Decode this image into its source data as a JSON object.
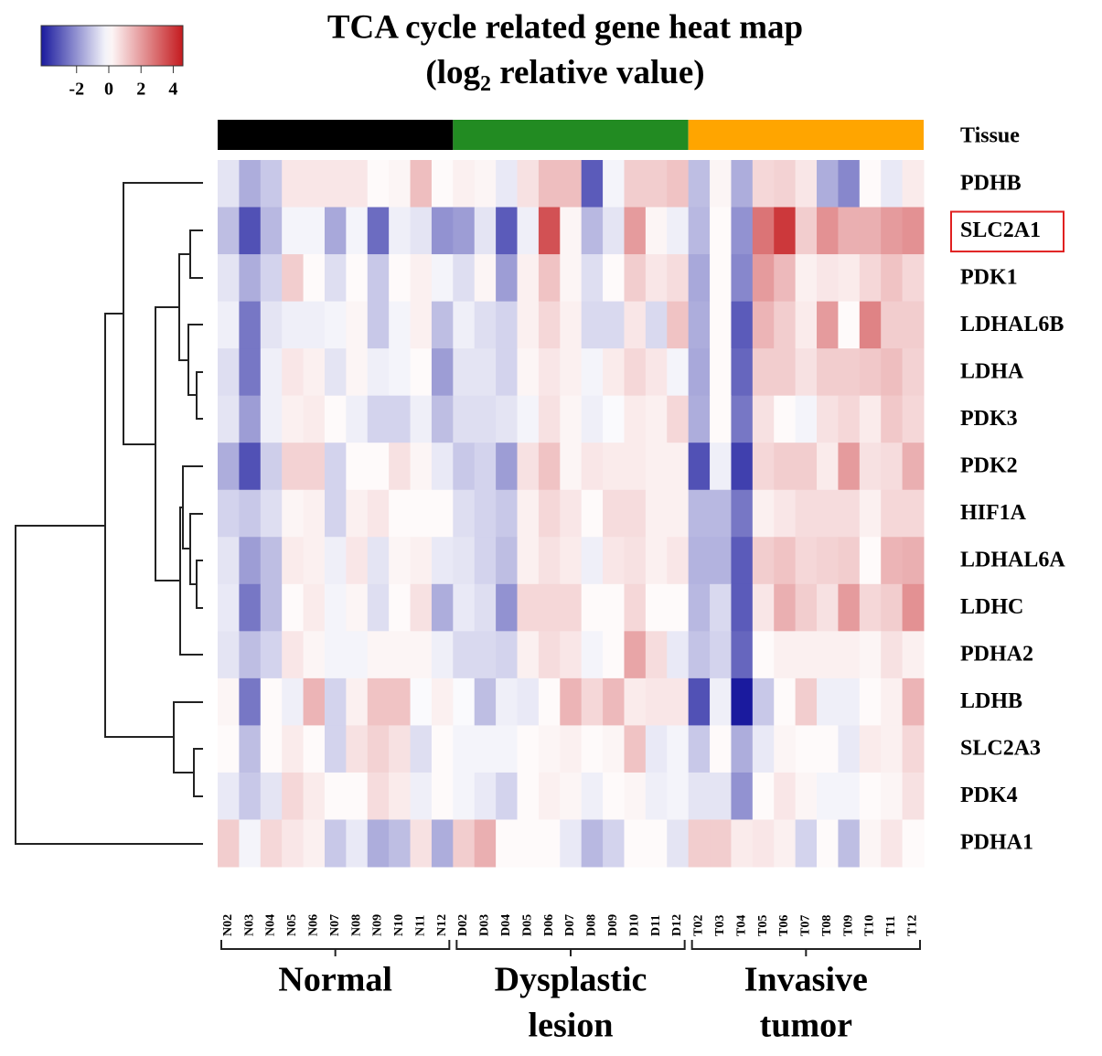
{
  "chart_data": {
    "type": "heatmap",
    "title": "TCA cycle related gene heat map",
    "subtitle_parts": [
      "(log",
      "2",
      " relative value)"
    ],
    "annotation_label": "Tissue",
    "colors": {
      "low": "#1a1a9e",
      "mid": "#ffffff",
      "high": "#c41a1e"
    },
    "colorbar_lim": [
      -4.2,
      4.6
    ],
    "colorbar_ticks": [
      -2,
      0,
      2,
      4
    ],
    "highlight": "SLC2A1",
    "groups": [
      {
        "label_lines": [
          "Normal"
        ],
        "color": "#000000",
        "columns": [
          "N02",
          "N03",
          "N04",
          "N05",
          "N06",
          "N07",
          "N08",
          "N09",
          "N10",
          "N11",
          "N12"
        ]
      },
      {
        "label_lines": [
          "Dysplastic",
          "lesion"
        ],
        "color": "#228b22",
        "columns": [
          "D02",
          "D03",
          "D04",
          "D05",
          "D06",
          "D07",
          "D08",
          "D09",
          "D10",
          "D11",
          "D12"
        ]
      },
      {
        "label_lines": [
          "Invasive",
          "tumor"
        ],
        "color": "#ffa500",
        "columns": [
          "T02",
          "T03",
          "T04",
          "T05",
          "T06",
          "T07",
          "T08",
          "T09",
          "T10",
          "T11",
          "T12"
        ]
      }
    ],
    "series": [
      {
        "name": "PDHB",
        "values": [
          -0.5,
          -1.5,
          -1,
          0.5,
          0.5,
          0.5,
          0.5,
          0.1,
          0.2,
          1.3,
          0.1,
          0.3,
          0.2,
          -0.4,
          0.6,
          1.3,
          1.3,
          -3,
          -0.2,
          1,
          1,
          1.2,
          -1.2,
          0.2,
          -1.5,
          0.8,
          0.9,
          0.5,
          -1.5,
          -2.2,
          0.1,
          -0.4,
          0.4
        ]
      },
      {
        "name": "SLC2A1",
        "values": [
          -1.2,
          -3.2,
          -1.3,
          -0.2,
          -0.2,
          -1.6,
          -0.2,
          -2.7,
          -0.3,
          -0.5,
          -2,
          -1.8,
          -0.5,
          -3,
          -0.3,
          3.5,
          0.2,
          -1.3,
          -0.5,
          2,
          0.2,
          -0.3,
          -1.3,
          0.1,
          -2,
          2.8,
          4,
          1,
          2.2,
          1.6,
          1.6,
          2,
          2.2
        ]
      },
      {
        "name": "PDK1",
        "values": [
          -0.5,
          -1.5,
          -0.8,
          1,
          0.1,
          -0.6,
          0.1,
          -1,
          0.1,
          0.3,
          -0.2,
          -0.6,
          0.2,
          -1.8,
          0.3,
          1.2,
          0.2,
          -0.6,
          0.1,
          1,
          0.5,
          0.7,
          -1.6,
          0.1,
          -2.2,
          2,
          1.4,
          0.3,
          0.5,
          0.4,
          0.8,
          1.2,
          0.8
        ]
      },
      {
        "name": "LDHAL6B",
        "values": [
          -0.3,
          -2.5,
          -0.5,
          -0.3,
          -0.3,
          -0.2,
          0.2,
          -1,
          -0.2,
          0.3,
          -1.2,
          -0.3,
          -0.6,
          -0.8,
          0.3,
          0.8,
          0.3,
          -0.7,
          -0.7,
          0.5,
          -0.7,
          1.2,
          -1.5,
          0.1,
          -3,
          1.5,
          1,
          0.4,
          2,
          0.1,
          2.5,
          1,
          1
        ]
      },
      {
        "name": "LDHA",
        "values": [
          -0.6,
          -2.5,
          -0.3,
          0.5,
          0.3,
          -0.5,
          0.2,
          -0.3,
          -0.2,
          0.1,
          -1.8,
          -0.5,
          -0.5,
          -0.8,
          0.2,
          0.5,
          0.3,
          -0.2,
          0.4,
          0.8,
          0.5,
          -0.2,
          -1.6,
          0.1,
          -2.8,
          1,
          1,
          0.6,
          1,
          1,
          1.1,
          1.3,
          0.9
        ]
      },
      {
        "name": "PDK3",
        "values": [
          -0.5,
          -1.8,
          -0.3,
          0.3,
          0.4,
          0.1,
          -0.3,
          -0.8,
          -0.8,
          -0.3,
          -1.2,
          -0.6,
          -0.6,
          -0.5,
          -0.2,
          0.6,
          0.2,
          -0.3,
          -0.1,
          0.4,
          0.3,
          0.8,
          -1.5,
          0.1,
          -2.5,
          0.6,
          0.1,
          -0.2,
          0.6,
          0.8,
          0.4,
          1.1,
          0.8
        ]
      },
      {
        "name": "PDK2",
        "values": [
          -1.5,
          -3.2,
          -0.9,
          0.9,
          0.9,
          -0.8,
          0.1,
          0.1,
          0.6,
          0.2,
          -0.4,
          -1,
          -0.8,
          -1.8,
          0.6,
          1.2,
          0.2,
          0.5,
          0.4,
          0.4,
          0.3,
          0.3,
          -3.2,
          -0.3,
          -3.5,
          0.8,
          1,
          1,
          0.4,
          2,
          0.6,
          0.7,
          1.6
        ]
      },
      {
        "name": "HIF1A",
        "values": [
          -0.8,
          -1,
          -0.6,
          0.2,
          0.3,
          -0.8,
          0.3,
          0.5,
          0.1,
          0.1,
          0.1,
          -0.6,
          -0.8,
          -1,
          0.3,
          0.8,
          0.5,
          0.1,
          0.7,
          0.7,
          0.3,
          0.3,
          -1.3,
          -1.3,
          -2.5,
          0.3,
          0.5,
          0.7,
          0.7,
          0.7,
          0.3,
          0.8,
          0.8
        ]
      },
      {
        "name": "LDHAL6A",
        "values": [
          -0.5,
          -1.8,
          -1.2,
          0.4,
          0.3,
          -0.3,
          0.5,
          -0.5,
          0.2,
          0.3,
          -0.4,
          -0.5,
          -0.8,
          -1.2,
          0.3,
          0.6,
          0.4,
          -0.3,
          0.5,
          0.6,
          0.3,
          0.5,
          -1.4,
          -1.4,
          -3,
          1,
          1.2,
          0.8,
          0.9,
          1,
          0.1,
          1.5,
          1.6
        ]
      },
      {
        "name": "LDHC",
        "values": [
          -0.4,
          -2.5,
          -1.2,
          0.1,
          0.4,
          -0.2,
          0.2,
          -0.6,
          0.1,
          0.6,
          -1.5,
          -0.4,
          -0.6,
          -2,
          0.8,
          0.8,
          0.8,
          0.1,
          0.1,
          0.8,
          0.1,
          0.1,
          -1.3,
          -0.7,
          -3,
          0.5,
          1.6,
          1,
          0.6,
          2,
          0.8,
          1,
          2.2
        ]
      },
      {
        "name": "PDHA2",
        "values": [
          -0.5,
          -1.2,
          -0.8,
          0.5,
          0.2,
          -0.2,
          -0.2,
          0.2,
          0.2,
          0.2,
          -0.3,
          -0.7,
          -0.7,
          -0.8,
          0.3,
          0.7,
          0.5,
          -0.2,
          0.1,
          1.8,
          0.7,
          -0.4,
          -1.1,
          -0.8,
          -2.8,
          0.1,
          0.3,
          0.3,
          0.3,
          0.3,
          0.2,
          0.6,
          0.3
        ]
      },
      {
        "name": "LDHB",
        "values": [
          0.2,
          -2.5,
          0.1,
          -0.3,
          1.5,
          -0.8,
          0.3,
          1.2,
          1.2,
          -0.1,
          0.3,
          -0.1,
          -1.2,
          -0.3,
          -0.4,
          0.1,
          1.5,
          0.8,
          1.4,
          0.4,
          0.5,
          0.5,
          -3.2,
          -0.3,
          -4.2,
          -1,
          0.1,
          1,
          -0.3,
          -0.3,
          0.1,
          0.3,
          1.5
        ]
      },
      {
        "name": "SLC2A3",
        "values": [
          0.1,
          -1.2,
          0.1,
          0.4,
          0.1,
          -0.8,
          0.6,
          0.9,
          0.6,
          -0.6,
          0.1,
          -0.2,
          -0.2,
          -0.2,
          0.1,
          0.2,
          0.3,
          0.1,
          0.2,
          1.2,
          -0.4,
          -0.2,
          -1,
          0.1,
          -1.5,
          -0.4,
          0.2,
          0.1,
          0.1,
          -0.4,
          0.4,
          0.3,
          0.8
        ]
      },
      {
        "name": "PDK4",
        "values": [
          -0.4,
          -1,
          -0.5,
          0.8,
          0.4,
          0.1,
          0.1,
          0.7,
          0.4,
          -0.3,
          0.1,
          -0.2,
          -0.4,
          -0.8,
          0.1,
          0.3,
          0.2,
          -0.3,
          0.1,
          0.2,
          -0.3,
          -0.2,
          -0.5,
          -0.5,
          -2,
          0.1,
          0.5,
          0.2,
          -0.2,
          -0.2,
          0.1,
          0.2,
          0.6
        ]
      },
      {
        "name": "PDHA1",
        "values": [
          1,
          -0.2,
          0.8,
          0.5,
          0.3,
          -1,
          -0.4,
          -1.5,
          -1.2,
          0.6,
          -1.5,
          1,
          1.6,
          0.1,
          0.1,
          0.1,
          -0.4,
          -1.3,
          -0.8,
          0.1,
          0.1,
          -0.5,
          1,
          1,
          0.4,
          0.5,
          0.3,
          -0.8,
          0.1,
          -1.2,
          0.2,
          0.5,
          0.1
        ]
      }
    ]
  }
}
